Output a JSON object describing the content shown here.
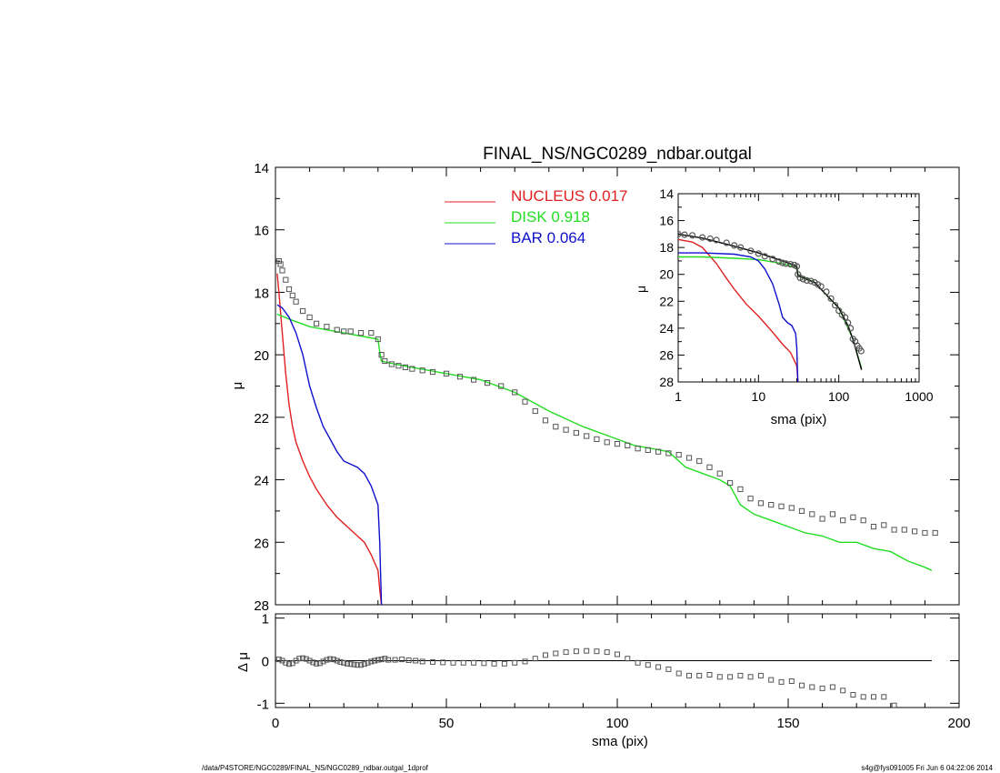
{
  "chart_data": [
    {
      "id": "main",
      "type": "line",
      "title": "FINAL_NS/NGC0289_ndbar.outgal",
      "ylabel": "μ",
      "xlim": [
        0,
        200
      ],
      "ylim": [
        28,
        14
      ],
      "y_inverted": true,
      "y_ticks": [
        14,
        16,
        18,
        20,
        22,
        24,
        26,
        28
      ],
      "legend_position": "top-center",
      "series": [
        {
          "name": "NUCLEUS",
          "value": "0.017",
          "color": "#e02020",
          "style": "line",
          "x": [
            0.5,
            1,
            2,
            3,
            4,
            5,
            6,
            8,
            10,
            12,
            15,
            18,
            20,
            21,
            22,
            24,
            26,
            28,
            30,
            30.5,
            31
          ],
          "y": [
            17.4,
            18.0,
            19.3,
            20.6,
            21.6,
            22.3,
            22.8,
            23.4,
            23.9,
            24.3,
            24.8,
            25.2,
            25.4,
            25.5,
            25.6,
            25.8,
            26.0,
            26.4,
            26.9,
            27.5,
            28.0
          ]
        },
        {
          "name": "DISK",
          "value": "0.918",
          "color": "#22dd22",
          "style": "line",
          "x": [
            0.5,
            5,
            10,
            15,
            20,
            25,
            30,
            30.5,
            31,
            35,
            40,
            50,
            60,
            70,
            80,
            90,
            100,
            105,
            110,
            115,
            120,
            125,
            130,
            133,
            136,
            140,
            145,
            150,
            155,
            160,
            165,
            170,
            175,
            180,
            185,
            190,
            192
          ],
          "y": [
            18.7,
            18.9,
            19.1,
            19.2,
            19.3,
            19.4,
            19.5,
            19.9,
            20.2,
            20.3,
            20.4,
            20.6,
            20.8,
            21.2,
            21.8,
            22.3,
            22.7,
            22.9,
            23.0,
            23.1,
            23.6,
            23.8,
            24.0,
            24.2,
            24.8,
            25.1,
            25.3,
            25.5,
            25.7,
            25.8,
            26.0,
            26.0,
            26.2,
            26.3,
            26.6,
            26.8,
            26.9
          ]
        },
        {
          "name": "BAR",
          "value": "0.064",
          "color": "#1010cc",
          "style": "line",
          "x": [
            0.5,
            2,
            4,
            6,
            8,
            10,
            12,
            14,
            16,
            18,
            20,
            22,
            24,
            26,
            28,
            30,
            30.5,
            31
          ],
          "y": [
            18.4,
            18.5,
            18.8,
            19.3,
            20.0,
            21.0,
            21.7,
            22.3,
            22.7,
            23.1,
            23.4,
            23.5,
            23.6,
            23.8,
            24.2,
            24.8,
            26.0,
            28.0
          ]
        },
        {
          "name": "",
          "color": "#555555",
          "style": "markers",
          "marker": "square",
          "x": [
            1,
            1.5,
            2,
            3,
            4,
            5,
            6,
            8,
            10,
            12,
            15,
            18,
            20,
            22,
            25,
            28,
            30,
            31,
            32,
            34,
            36,
            38,
            40,
            43,
            46,
            50,
            54,
            58,
            62,
            66,
            70,
            73,
            76,
            79,
            82,
            85,
            88,
            91,
            94,
            97,
            100,
            103,
            106,
            109,
            112,
            115,
            118,
            121,
            124,
            127,
            130,
            133,
            136,
            139,
            142,
            145,
            148,
            151,
            154,
            157,
            160,
            163,
            166,
            169,
            172,
            175,
            178,
            181,
            184,
            187,
            190,
            193
          ],
          "y": [
            17.0,
            17.1,
            17.3,
            17.6,
            17.9,
            18.1,
            18.3,
            18.6,
            18.8,
            19.0,
            19.1,
            19.2,
            19.25,
            19.25,
            19.3,
            19.3,
            19.5,
            20.0,
            20.2,
            20.3,
            20.35,
            20.4,
            20.45,
            20.5,
            20.55,
            20.6,
            20.7,
            20.8,
            20.9,
            21.0,
            21.2,
            21.5,
            21.8,
            22.1,
            22.3,
            22.4,
            22.5,
            22.6,
            22.7,
            22.8,
            22.85,
            22.9,
            23.0,
            23.05,
            23.1,
            23.15,
            23.2,
            23.3,
            23.4,
            23.6,
            23.8,
            24.1,
            24.3,
            24.6,
            24.75,
            24.8,
            24.85,
            24.9,
            25.0,
            25.1,
            25.25,
            25.1,
            25.3,
            25.2,
            25.3,
            25.5,
            25.45,
            25.6,
            25.6,
            25.65,
            25.7,
            25.7
          ]
        }
      ]
    },
    {
      "id": "residual",
      "type": "scatter",
      "xlabel": "sma (pix)",
      "ylabel": "Δ μ",
      "xlim": [
        0,
        200
      ],
      "ylim": [
        -1.1,
        1.1
      ],
      "x_ticks": [
        0,
        50,
        100,
        150,
        200
      ],
      "y_ticks": [
        -1,
        0,
        1
      ],
      "zero_line": true,
      "series": [
        {
          "name": "",
          "color": "#555555",
          "style": "markers",
          "marker": "square",
          "x": [
            1,
            2,
            3,
            4,
            5,
            6,
            7,
            8,
            9,
            10,
            11,
            12,
            13,
            14,
            15,
            16,
            17,
            18,
            19,
            20,
            21,
            22,
            23,
            24,
            25,
            26,
            27,
            28,
            29,
            30,
            31,
            32,
            33,
            35,
            37,
            39,
            41,
            43,
            46,
            49,
            52,
            55,
            58,
            61,
            64,
            67,
            70,
            73,
            76,
            79,
            82,
            85,
            88,
            91,
            94,
            97,
            100,
            103,
            106,
            109,
            112,
            115,
            118,
            121,
            124,
            127,
            130,
            133,
            136,
            139,
            142,
            145,
            148,
            151,
            154,
            157,
            160,
            163,
            166,
            169,
            172,
            175,
            178,
            181
          ],
          "y": [
            0.03,
            0.0,
            -0.05,
            -0.08,
            -0.06,
            0.0,
            0.05,
            0.06,
            0.04,
            0.0,
            -0.04,
            -0.07,
            -0.06,
            -0.02,
            0.02,
            0.04,
            0.03,
            0.0,
            -0.03,
            -0.05,
            -0.07,
            -0.08,
            -0.09,
            -0.1,
            -0.1,
            -0.08,
            -0.05,
            -0.02,
            0.0,
            0.02,
            0.03,
            0.05,
            0.02,
            0.02,
            0.03,
            0.01,
            0.0,
            -0.02,
            -0.03,
            -0.04,
            -0.05,
            -0.05,
            -0.05,
            -0.06,
            -0.07,
            -0.07,
            -0.05,
            -0.02,
            0.05,
            0.13,
            0.17,
            0.2,
            0.22,
            0.23,
            0.22,
            0.2,
            0.15,
            0.05,
            -0.05,
            -0.1,
            -0.15,
            -0.2,
            -0.3,
            -0.35,
            -0.35,
            -0.33,
            -0.38,
            -0.38,
            -0.35,
            -0.38,
            -0.35,
            -0.45,
            -0.5,
            -0.48,
            -0.58,
            -0.62,
            -0.65,
            -0.62,
            -0.7,
            -0.8,
            -0.85,
            -0.85,
            -0.85,
            -1.05
          ]
        }
      ]
    },
    {
      "id": "inset",
      "type": "line",
      "xlabel": "sma (pix)",
      "ylabel": "μ",
      "xscale": "log",
      "xlim": [
        1,
        1000
      ],
      "ylim": [
        28,
        14
      ],
      "y_inverted": true,
      "x_ticks": [
        1,
        10,
        100,
        1000
      ],
      "x_tick_labels": [
        "1",
        "10",
        "100",
        "1000"
      ],
      "y_ticks": [
        14,
        16,
        18,
        20,
        22,
        24,
        26,
        28
      ],
      "series": [
        {
          "name": "NUCLEUS",
          "color": "#e02020",
          "style": "line",
          "x": [
            1,
            1.5,
            2,
            3,
            4,
            5,
            7,
            10,
            15,
            20,
            25,
            30,
            31
          ],
          "y": [
            17.4,
            17.6,
            18.0,
            19.2,
            20.3,
            21.1,
            22.2,
            23.1,
            24.3,
            25.2,
            25.8,
            26.8,
            28.0
          ]
        },
        {
          "name": "DISK",
          "color": "#22dd22",
          "style": "line",
          "x": [
            1,
            2,
            5,
            10,
            20,
            30,
            31,
            50,
            100,
            150,
            192
          ],
          "y": [
            18.7,
            18.7,
            18.8,
            18.9,
            19.2,
            19.5,
            20.0,
            20.6,
            22.5,
            24.8,
            27.0
          ]
        },
        {
          "name": "BAR",
          "color": "#1010cc",
          "style": "line",
          "x": [
            1,
            2,
            5,
            8,
            10,
            12,
            15,
            18,
            20,
            23,
            26,
            29,
            30,
            30.5,
            31
          ],
          "y": [
            18.4,
            18.4,
            18.5,
            18.7,
            19.0,
            19.6,
            20.7,
            22.2,
            23.2,
            23.6,
            23.8,
            24.4,
            25.5,
            27.0,
            28.0
          ]
        },
        {
          "name": "",
          "color": "#000000",
          "style": "line",
          "x": [
            1,
            2,
            5,
            10,
            20,
            30,
            31,
            50,
            100,
            130,
            150,
            192
          ],
          "y": [
            17.0,
            17.3,
            17.9,
            18.4,
            19.0,
            19.4,
            20.1,
            20.6,
            22.5,
            23.8,
            24.8,
            27.1
          ]
        },
        {
          "name": "",
          "color": "#555555",
          "style": "markers",
          "marker": "circle",
          "x": [
            1,
            1.2,
            1.5,
            2,
            2.5,
            3,
            4,
            5,
            6,
            8,
            10,
            12,
            15,
            18,
            20,
            22,
            25,
            28,
            30,
            31,
            33,
            36,
            40,
            45,
            50,
            55,
            60,
            70,
            80,
            90,
            100,
            110,
            120,
            130,
            140,
            150,
            160,
            170,
            180,
            190
          ],
          "y": [
            17.0,
            17.05,
            17.1,
            17.25,
            17.35,
            17.45,
            17.65,
            17.85,
            18.0,
            18.25,
            18.45,
            18.65,
            18.85,
            19.05,
            19.15,
            19.2,
            19.25,
            19.3,
            19.4,
            20.0,
            20.25,
            20.35,
            20.45,
            20.5,
            20.6,
            20.75,
            20.9,
            21.3,
            21.8,
            22.3,
            22.7,
            23.0,
            23.2,
            23.6,
            24.0,
            24.8,
            25.0,
            25.3,
            25.5,
            25.7
          ]
        }
      ]
    }
  ],
  "footer": {
    "left": "/data/P4STORE/NGC0289/FINAL_NS/NGC0289_ndbar.outgal_1dprof",
    "right": "s4g@fys091005  Fri Jun  6 04:22:06 2014"
  }
}
